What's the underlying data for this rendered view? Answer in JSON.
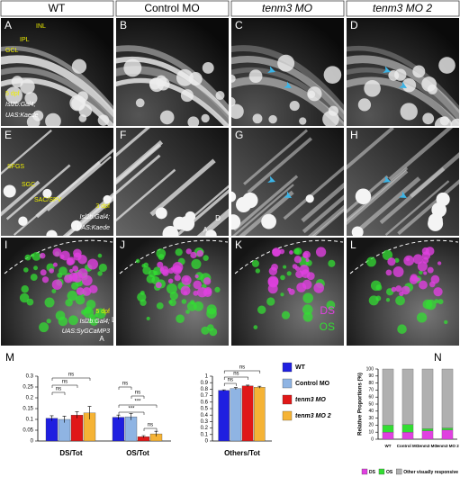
{
  "header": [
    "WT",
    "Control MO",
    "tenm3 MO",
    "tenm3 MO 2"
  ],
  "panels": [
    {
      "label": "A",
      "texts": [
        "INL",
        "IPL",
        "GCL",
        "5 dpf",
        "Isl2b:Gal4;",
        "UAS:Kaede"
      ]
    },
    {
      "label": "B"
    },
    {
      "label": "C"
    },
    {
      "label": "D"
    },
    {
      "label": "E",
      "texts": [
        "SFGS",
        "SGC",
        "SAC/SPV",
        "3 dpf",
        "Isl2b:Gal4;",
        "UAS:Kaede"
      ]
    },
    {
      "label": "F",
      "texts": [
        "D",
        "A"
      ]
    },
    {
      "label": "G"
    },
    {
      "label": "H"
    },
    {
      "label": "I",
      "texts": [
        "5 dpf",
        "Isl2b:Gal4;",
        "UAS:SyGCaMP3",
        "L",
        "A"
      ]
    },
    {
      "label": "J"
    },
    {
      "label": "K",
      "texts": [
        "DS",
        "OS"
      ]
    },
    {
      "label": "L"
    }
  ],
  "chart_data": [
    {
      "type": "bar",
      "panel_label": "M",
      "categories": [
        "DS/Tot",
        "OS/Tot"
      ],
      "series": [
        {
          "name": "WT",
          "color": "#1f1fe0",
          "values": [
            0.105,
            0.11
          ],
          "errors": [
            0.012,
            0.01
          ]
        },
        {
          "name": "Control MO",
          "color": "#8fb4e3",
          "values": [
            0.1,
            0.112
          ],
          "errors": [
            0.015,
            0.015
          ]
        },
        {
          "name": "tenm3 MO",
          "color": "#e01818",
          "values": [
            0.12,
            0.02
          ],
          "errors": [
            0.015,
            0.005
          ]
        },
        {
          "name": "tenm3 MO 2",
          "color": "#f5b335",
          "values": [
            0.13,
            0.033
          ],
          "errors": [
            0.03,
            0.012
          ]
        }
      ],
      "annotations": [
        "ns",
        "ns",
        "ns",
        "ns",
        "ns",
        "***",
        "***",
        "ns"
      ],
      "ylim": [
        0,
        0.3
      ],
      "yticks": [
        0,
        0.05,
        0.1,
        0.15,
        0.2,
        0.25,
        0.3
      ],
      "legend": "right"
    },
    {
      "type": "bar",
      "categories": [
        "Others/Tot"
      ],
      "series": [
        {
          "color": "#1f1fe0",
          "values": [
            0.78
          ],
          "errors": [
            0.01
          ]
        },
        {
          "color": "#8fb4e3",
          "values": [
            0.81
          ],
          "errors": [
            0.015
          ]
        },
        {
          "color": "#e01818",
          "values": [
            0.85
          ],
          "errors": [
            0.012
          ]
        },
        {
          "color": "#f5b335",
          "values": [
            0.83
          ],
          "errors": [
            0.015
          ]
        }
      ],
      "annotations": [
        "ns",
        "ns",
        "ns"
      ],
      "ylim": [
        0,
        1
      ],
      "yticks": [
        0,
        0.1,
        0.2,
        0.3,
        0.4,
        0.5,
        0.6,
        0.7,
        0.8,
        0.9,
        1
      ]
    },
    {
      "type": "stacked_bar",
      "panel_label": "N",
      "y_label": "Relative Proportions (%)",
      "categories": [
        "WT",
        "Control MO",
        "tenm3 MO",
        "tenm3 MO 2"
      ],
      "series": [
        {
          "name": "DS",
          "color": "#e040e0",
          "values": [
            10,
            10,
            12,
            13
          ]
        },
        {
          "name": "OS",
          "color": "#33dd33",
          "values": [
            10,
            11,
            3,
            3
          ]
        },
        {
          "name": "Other visually responsive",
          "color": "#b0b0b0",
          "values": [
            80,
            79,
            85,
            84
          ]
        }
      ],
      "ylim": [
        0,
        100
      ],
      "yticks": [
        0,
        10,
        20,
        30,
        40,
        50,
        60,
        70,
        80,
        90,
        100
      ]
    }
  ]
}
